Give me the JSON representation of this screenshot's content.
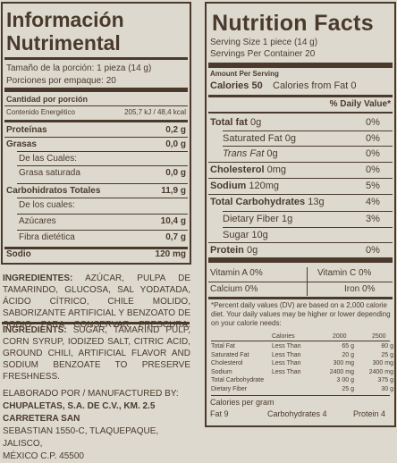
{
  "spanish_panel": {
    "title_line1": "Información",
    "title_line2": "Nutrimental",
    "serving_size": "Tamaño de la porción: 1 pieza (14 g)",
    "servings": "Porciones por empaque: 20",
    "amount_header": "Cantidad por porción",
    "energy_label": "Contenido Energético",
    "energy_value": "205,7 kJ / 48,4 kcal",
    "rows": [
      {
        "label": "Proteínas",
        "value": "0,2 g",
        "bold": true
      },
      {
        "label": "Grasas",
        "value": "0,0 g",
        "bold": true
      },
      {
        "label": "De las Cuales:",
        "value": "",
        "bold": false
      },
      {
        "label": "Grasa saturada",
        "value": "0,0 g",
        "bold": false
      },
      {
        "label": "Carbohidratos Totales",
        "value": "11,9 g",
        "bold": true
      },
      {
        "label": "De los cuales:",
        "value": "",
        "bold": false
      },
      {
        "label": "Azúcares",
        "value": "10,4 g",
        "bold": false
      },
      {
        "label": "Fibra dietética",
        "value": "0,7 g",
        "bold": false
      },
      {
        "label": "Sodio",
        "value": "120 mg",
        "bold": true
      }
    ]
  },
  "nutrition_facts": {
    "title": "Nutrition Facts",
    "serving_size": "Serving Size 1 piece (14 g)",
    "servings": "Servings Per Container  20",
    "amount_per_serving": "Amount Per Serving",
    "calories": "Calories 50",
    "calories_fat": "Calories from Fat 0",
    "dv_header": "% Daily Value*",
    "rows": [
      {
        "label": "Total fat",
        "amount": " 0g",
        "dv": "0%",
        "bold": true,
        "indent": false,
        "italic": false
      },
      {
        "label": "Saturated Fat",
        "amount": " 0g",
        "dv": "0%",
        "bold": false,
        "indent": true,
        "italic": false
      },
      {
        "label": "Trans Fat",
        "amount": " 0g",
        "dv": "0%",
        "bold": false,
        "indent": true,
        "italic": true
      },
      {
        "label": "Cholesterol",
        "amount": " 0mg",
        "dv": "0%",
        "bold": true,
        "indent": false,
        "italic": false
      },
      {
        "label": "Sodium",
        "amount": " 120mg",
        "dv": "5%",
        "bold": true,
        "indent": false,
        "italic": false
      },
      {
        "label": "Total Carbohydrates",
        "amount": " 13g",
        "dv": "4%",
        "bold": true,
        "indent": false,
        "italic": false
      },
      {
        "label": "Dietary Fiber",
        "amount": " 1g",
        "dv": "3%",
        "bold": false,
        "indent": true,
        "italic": false
      },
      {
        "label": "Sugar",
        "amount": " 10g",
        "dv": "",
        "bold": false,
        "indent": true,
        "italic": false
      },
      {
        "label": "Protein",
        "amount": " 0g",
        "dv": "0%",
        "bold": true,
        "indent": false,
        "italic": false
      }
    ],
    "vit_a": "Vitamin A 0%",
    "vit_c": "Vitamin C 0%",
    "calcium": "Calcium 0%",
    "iron": "Iron 0%",
    "footnote": "*Percent daily values (DV) are based on a 2,000 calorie diet. Your daily values may be higher or lower depending on your calorie needs:",
    "table_head": {
      "label": "Calories",
      "c1": "2000",
      "c2": "2500"
    },
    "table_rows": [
      {
        "label": "Total Fat",
        "lt": "Less Than",
        "a": "65 g",
        "b": "80 g"
      },
      {
        "label": "Saturated Fat",
        "lt": "Less Than",
        "a": "20 g",
        "b": "25 g"
      },
      {
        "label": "Cholesterol",
        "lt": "Less Than",
        "a": "300 mg",
        "b": "300 mg"
      },
      {
        "label": "Sodium",
        "lt": "Less Than",
        "a": "2400 mg",
        "b": "2400 mg"
      },
      {
        "label": "Total Carbohydrate",
        "lt": "",
        "a": "3 00 g",
        "b": "375 g"
      },
      {
        "label": "Dietary Fiber",
        "lt": "",
        "a": "25 g",
        "b": "30 g"
      }
    ],
    "cal_per_gram": "Calories per gram",
    "fat9": "Fat 9",
    "carb4": "Carbohydrates 4",
    "protein4": "Protein 4"
  },
  "ingredients_es": {
    "line1": "INGREDIENTES:",
    "text": "AZÚCAR, PULPA DE TAMARINDO, GLUCOSA, SAL YODATADA, ÁCIDO CÍTRICO, CHILE MOLIDO, SABORIZANTE ARTIFICIAL Y BENZOATO DE SODIO PARA CONSERVAR FRESCURA."
  },
  "ingredients_en": {
    "line1": "INGREDIENTS:",
    "text": "SUGAR, TAMARIND PULP, CORN SYRUP, IODIZED SALT, CITRIC ACID, GROUND CHILI, ARTIFICIAL FLAVOR AND SODIUM BENZOATE TO PRESERVE FRESHNESS."
  },
  "manufacturer": {
    "line1": "ELABORADO POR / MANUFACTURED BY:",
    "line2": "CHUPALETAS, S.A. DE C.V., KM. 2.5 CARRETERA SAN",
    "line3": "SEBASTIAN 1550-C, TLAQUEPAQUE, JALISCO,",
    "line4": "MÉXICO C.P. 45500"
  }
}
